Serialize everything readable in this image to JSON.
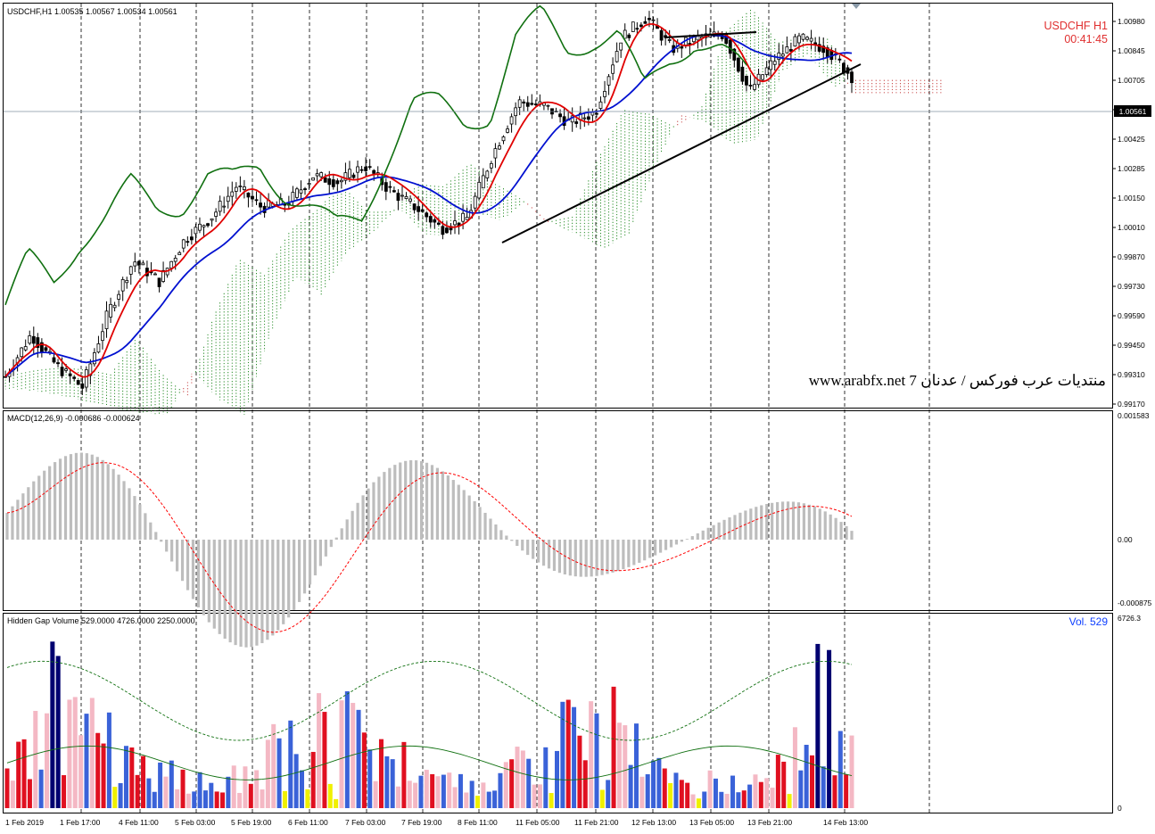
{
  "main": {
    "header": "USDCHF,H1  1.00535 1.00567 1.00534 1.00561",
    "symbol_label": "USDCHF  H1",
    "timer": "00:41:45",
    "watermark": "www.arabfx.net 7 منتديات عرب فوركس / عدنان",
    "current_price": "1.00561",
    "price_ticks": [
      "1.00980",
      "1.00845",
      "1.00705",
      "1.00565",
      "1.00425",
      "1.00285",
      "1.00150",
      "1.00010",
      "0.99870",
      "0.99730",
      "0.99590",
      "0.99450",
      "0.99310",
      "0.99170"
    ]
  },
  "macd": {
    "header": "MACD(12,26,9) -0.000686 -0.000624",
    "ticks": [
      "0.001583",
      "0.00",
      "-0.000875"
    ]
  },
  "volume": {
    "header": "Hidden Gap Volume 529.0000 4726.0000 2250.0000",
    "vol_label": "Vol.   529",
    "ticks": [
      "6726.3",
      "0"
    ]
  },
  "time_labels": [
    "1 Feb 2019",
    "1 Feb 17:00",
    "4 Feb 11:00",
    "5 Feb 03:00",
    "5 Feb 19:00",
    "6 Feb 11:00",
    "7 Feb 03:00",
    "7 Feb 19:00",
    "8 Feb 11:00",
    "11 Feb 05:00",
    "11 Feb 21:00",
    "12 Feb 13:00",
    "13 Feb 05:00",
    "13 Feb 21:00",
    "14 Feb 13:00"
  ],
  "colors": {
    "tenkan": "#e00000",
    "kijun": "#0010d0",
    "chikou": "#107010",
    "cloud_bull": "#108010",
    "cloud_bear": "#c03030",
    "macd_hist": "#bdbdbd",
    "macd_signal": "#ff0000",
    "vol_blue": "#3a62d8",
    "vol_red": "#e01020",
    "vol_pink": "#f4b8c4",
    "vol_yellow": "#f0f000",
    "vol_navy": "#000070",
    "label_red": "#e03030",
    "label_blue": "#1040ff"
  },
  "chart_data": {
    "type": "line",
    "symbol": "USDCHF",
    "timeframe": "H1",
    "close": [
      0.993,
      0.995,
      0.9935,
      0.9925,
      0.996,
      0.9985,
      0.9975,
      0.9995,
      1.0005,
      1.002,
      1.001,
      1.0012,
      1.0025,
      1.0022,
      1.003,
      1.0018,
      1.001,
      1.0,
      1.0005,
      1.0035,
      1.006,
      1.0058,
      1.005,
      1.0055,
      1.009,
      1.01,
      1.0085,
      1.009,
      1.0092,
      1.0065,
      1.008,
      1.009,
      1.0085,
      1.0072
    ],
    "close_sampling": "approx every 10 bars",
    "current_price": 1.00561,
    "y_range": [
      0.9917,
      1.0098
    ]
  }
}
